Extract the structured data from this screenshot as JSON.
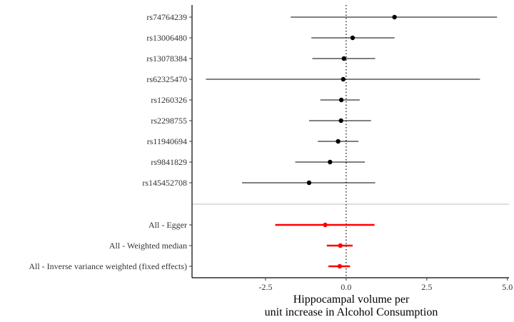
{
  "chart_data": {
    "type": "forest",
    "xlabel_lines": [
      "Hippocampal volume per",
      "unit increase in Alcohol Consumption"
    ],
    "xlim": [
      -4.78,
      5.05
    ],
    "xticks": [
      -2.5,
      0.0,
      2.5,
      5.0
    ],
    "xtick_labels": [
      "-2.5",
      "0.0",
      "2.5",
      "5.0"
    ],
    "reference_line": 0,
    "grid": false,
    "snps": [
      {
        "label": "rs74764239",
        "estimate": 1.5,
        "lower": -1.72,
        "upper": 4.68
      },
      {
        "label": "rs13006480",
        "estimate": 0.2,
        "lower": -1.08,
        "upper": 1.5
      },
      {
        "label": "rs13078384",
        "estimate": -0.07,
        "lower": -1.05,
        "upper": 0.9
      },
      {
        "label": "rs62325470",
        "estimate": -0.09,
        "lower": -4.35,
        "upper": 4.15
      },
      {
        "label": "rs1260326",
        "estimate": -0.15,
        "lower": -0.8,
        "upper": 0.42
      },
      {
        "label": "rs2298755",
        "estimate": -0.16,
        "lower": -1.15,
        "upper": 0.77
      },
      {
        "label": "rs11940694",
        "estimate": -0.25,
        "lower": -0.88,
        "upper": 0.38
      },
      {
        "label": "rs9841829",
        "estimate": -0.5,
        "lower": -1.58,
        "upper": 0.58
      },
      {
        "label": "rs145452708",
        "estimate": -1.15,
        "lower": -3.23,
        "upper": 0.9
      }
    ],
    "summary": [
      {
        "label": "All - Egger",
        "estimate": -0.65,
        "lower": -2.2,
        "upper": 0.88
      },
      {
        "label": "All - Weighted median",
        "estimate": -0.18,
        "lower": -0.6,
        "upper": 0.2
      },
      {
        "label": "All - Inverse variance weighted (fixed effects)",
        "estimate": -0.2,
        "lower": -0.55,
        "upper": 0.12
      }
    ],
    "colors": {
      "snp": "#000000",
      "summary": "#ff0000",
      "separator": "#bebebe"
    }
  }
}
